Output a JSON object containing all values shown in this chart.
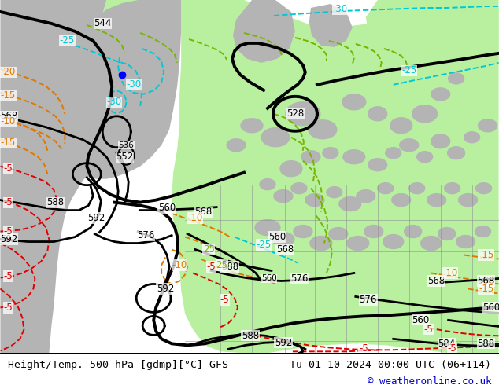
{
  "title_left": "Height/Temp. 500 hPa [gdmp][°C] GFS",
  "title_right": "Tu 01-10-2024 00:00 UTC (06+114)",
  "copyright": "© weatheronline.co.uk",
  "bg_light": "#e8e8e8",
  "green_color": "#b8f0a0",
  "gray_land": "#b4b4b4",
  "green_land": "#90d878",
  "black": "#000000",
  "cyan": "#00c8d4",
  "orange": "#e07800",
  "red": "#e00000",
  "lime": "#78b400",
  "blue": "#0000e0",
  "copyright_color": "#0000cc",
  "title_fontsize": 9.5,
  "copyright_fontsize": 9,
  "label_fontsize": 8.5,
  "fig_width": 6.34,
  "fig_height": 4.9,
  "dpi": 100
}
